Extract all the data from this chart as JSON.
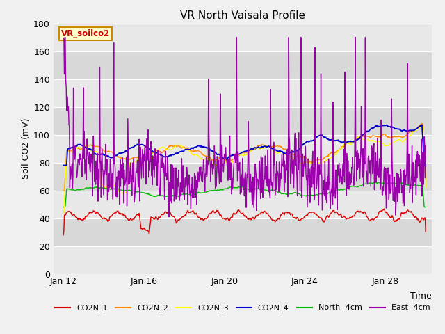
{
  "title": "VR North Vaisala Profile",
  "xlabel": "Time",
  "ylabel": "Soil CO2 (mV)",
  "annotation": "VR_soilco2",
  "ylim": [
    0,
    180
  ],
  "yticks": [
    0,
    20,
    40,
    60,
    80,
    100,
    120,
    140,
    160,
    180
  ],
  "xtick_labels": [
    "Jan 12",
    "Jan 16",
    "Jan 20",
    "Jan 24",
    "Jan 28"
  ],
  "xtick_positions": [
    12,
    16,
    20,
    24,
    28
  ],
  "fig_bg_color": "#f0f0f0",
  "plot_bg_color": "#e8e8e8",
  "band_colors": [
    "#e8e8e8",
    "#d8d8d8"
  ],
  "grid_color": "#ffffff",
  "series": {
    "CO2N_1": {
      "color": "#dd0000",
      "lw": 1.0
    },
    "CO2N_2": {
      "color": "#ff8800",
      "lw": 1.0
    },
    "CO2N_3": {
      "color": "#ffff00",
      "lw": 1.0
    },
    "CO2N_4": {
      "color": "#0000cc",
      "lw": 1.3
    },
    "North -4cm": {
      "color": "#00bb00",
      "lw": 1.0
    },
    "East -4cm": {
      "color": "#9900aa",
      "lw": 1.0
    }
  }
}
